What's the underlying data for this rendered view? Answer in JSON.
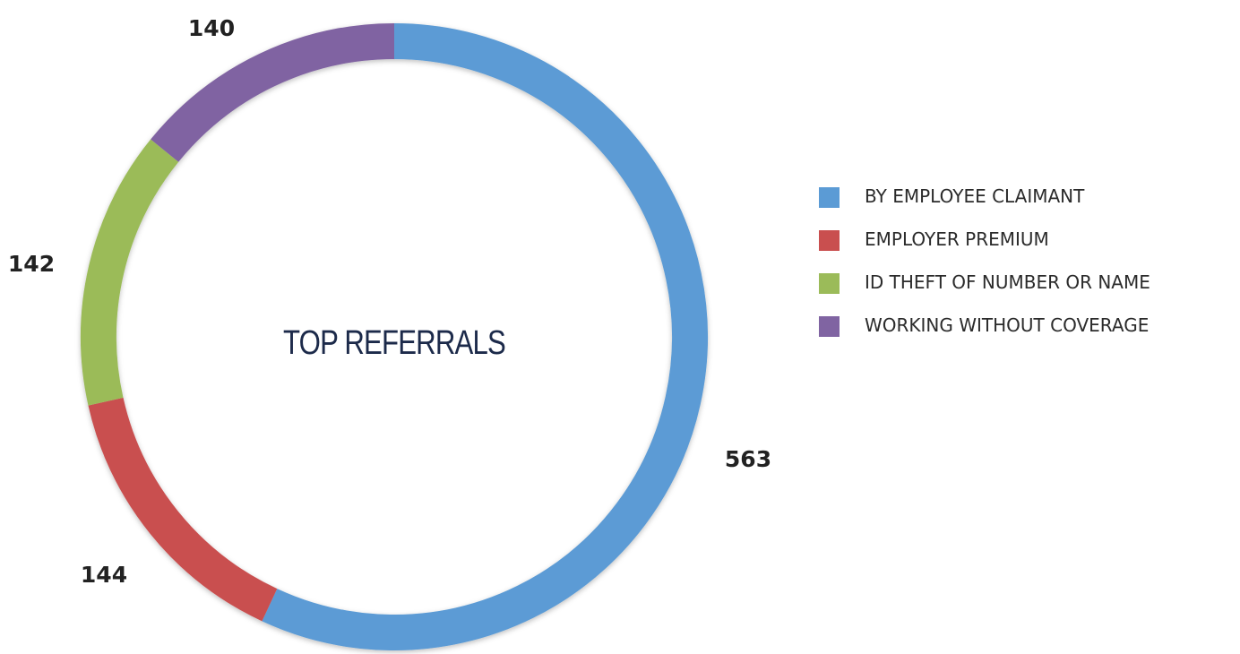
{
  "chart_data": {
    "type": "pie",
    "variant": "donut",
    "title": "TOP REFERRALS",
    "categories": [
      "BY EMPLOYEE CLAIMANT",
      "EMPLOYER PREMIUM",
      "ID THEFT OF NUMBER OR NAME",
      "WORKING WITHOUT COVERAGE"
    ],
    "values": [
      563,
      144,
      142,
      140
    ],
    "colors": [
      "#5b9bd5",
      "#c94f4f",
      "#9bbb59",
      "#8064a2"
    ],
    "legend_position": "right",
    "start_angle": "top",
    "direction": "clockwise"
  }
}
